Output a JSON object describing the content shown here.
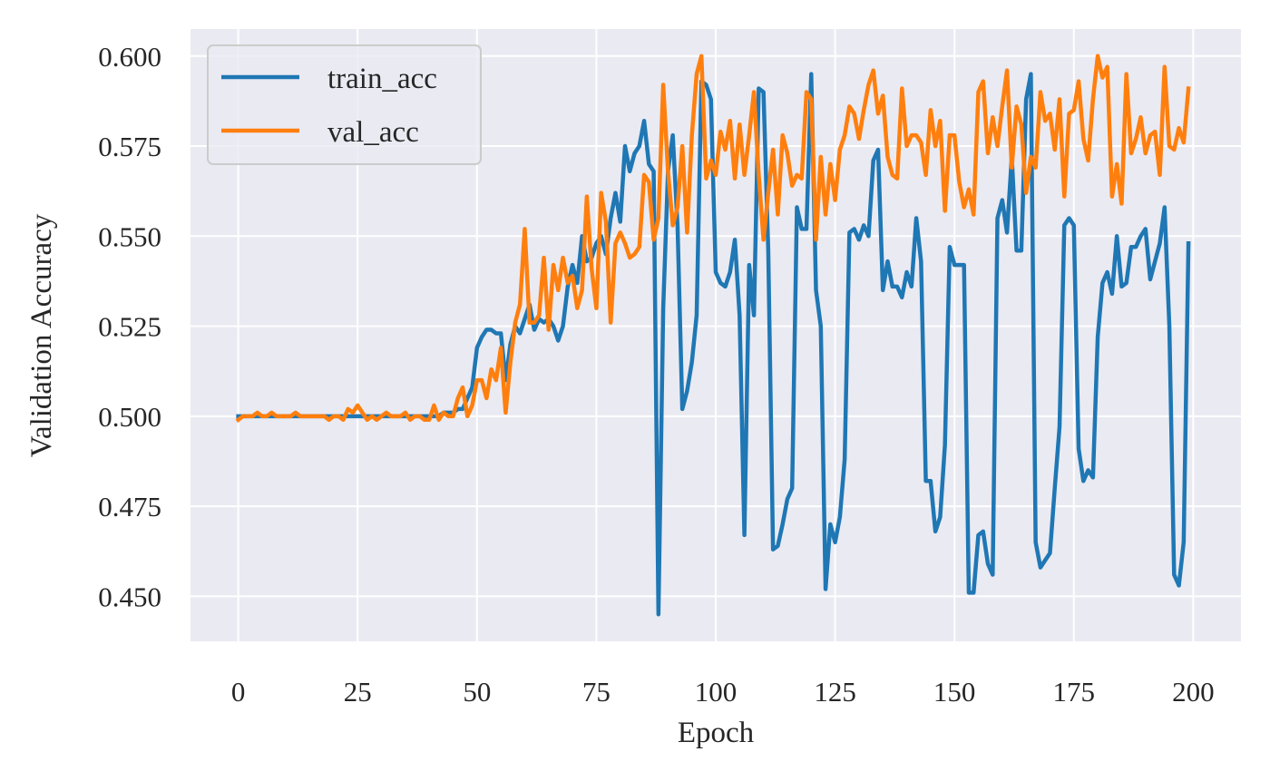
{
  "colors": {
    "background": "#eaeaf2",
    "grid": "#ffffff",
    "train": "#1f77b4",
    "val": "#ff7f0e"
  },
  "chart_data": {
    "type": "line",
    "xlabel": "Epoch",
    "ylabel": "Validation Accuracy",
    "xlim": [
      -10,
      210
    ],
    "ylim": [
      0.4375,
      0.6075
    ],
    "xticks": [
      0,
      25,
      50,
      75,
      100,
      125,
      150,
      175,
      200
    ],
    "xtick_labels": [
      "0",
      "25",
      "50",
      "75",
      "100",
      "125",
      "150",
      "175",
      "200"
    ],
    "yticks": [
      0.45,
      0.475,
      0.5,
      0.525,
      0.55,
      0.575,
      0.6
    ],
    "ytick_labels": [
      "0.450",
      "0.475",
      "0.500",
      "0.525",
      "0.550",
      "0.575",
      "0.600"
    ],
    "grid": true,
    "legend_position": "top-left",
    "series": [
      {
        "name": "train_acc",
        "x_start": 0,
        "values": [
          0.5,
          0.5,
          0.5,
          0.5,
          0.5,
          0.5,
          0.5,
          0.5,
          0.5,
          0.5,
          0.5,
          0.5,
          0.5,
          0.5,
          0.5,
          0.5,
          0.5,
          0.5,
          0.5,
          0.5,
          0.5,
          0.5,
          0.5,
          0.5,
          0.5,
          0.5,
          0.5,
          0.5,
          0.5,
          0.5,
          0.5,
          0.5,
          0.5,
          0.5,
          0.5,
          0.5,
          0.5,
          0.5,
          0.5,
          0.5,
          0.5,
          0.5,
          0.5,
          0.501,
          0.501,
          0.501,
          0.502,
          0.502,
          0.505,
          0.508,
          0.519,
          0.522,
          0.524,
          0.524,
          0.523,
          0.523,
          0.51,
          0.52,
          0.525,
          0.523,
          0.527,
          0.531,
          0.524,
          0.527,
          0.526,
          0.527,
          0.525,
          0.521,
          0.525,
          0.536,
          0.542,
          0.537,
          0.55,
          0.543,
          0.544,
          0.548,
          0.55,
          0.545,
          0.555,
          0.562,
          0.554,
          0.575,
          0.568,
          0.573,
          0.575,
          0.582,
          0.57,
          0.568,
          0.445,
          0.53,
          0.568,
          0.578,
          0.553,
          0.502,
          0.507,
          0.515,
          0.528,
          0.593,
          0.592,
          0.588,
          0.54,
          0.537,
          0.536,
          0.54,
          0.549,
          0.528,
          0.467,
          0.542,
          0.528,
          0.591,
          0.59,
          0.546,
          0.463,
          0.464,
          0.47,
          0.477,
          0.48,
          0.558,
          0.552,
          0.552,
          0.595,
          0.535,
          0.525,
          0.452,
          0.47,
          0.465,
          0.472,
          0.488,
          0.551,
          0.552,
          0.549,
          0.553,
          0.55,
          0.571,
          0.574,
          0.535,
          0.543,
          0.536,
          0.536,
          0.533,
          0.54,
          0.536,
          0.555,
          0.543,
          0.482,
          0.482,
          0.468,
          0.472,
          0.492,
          0.547,
          0.542,
          0.542,
          0.542,
          0.451,
          0.451,
          0.467,
          0.468,
          0.459,
          0.456,
          0.555,
          0.56,
          0.551,
          0.572,
          0.546,
          0.546,
          0.588,
          0.595,
          0.465,
          0.458,
          0.46,
          0.462,
          0.48,
          0.497,
          0.553,
          0.555,
          0.553,
          0.491,
          0.482,
          0.485,
          0.483,
          0.522,
          0.537,
          0.54,
          0.534,
          0.55,
          0.536,
          0.537,
          0.547,
          0.547,
          0.55,
          0.552,
          0.538,
          0.543,
          0.548,
          0.558,
          0.525,
          0.456,
          0.453,
          0.465,
          0.548
        ]
      },
      {
        "name": "val_acc",
        "x_start": 0,
        "values": [
          0.499,
          0.5,
          0.5,
          0.5,
          0.501,
          0.5,
          0.5,
          0.501,
          0.5,
          0.5,
          0.5,
          0.5,
          0.501,
          0.5,
          0.5,
          0.5,
          0.5,
          0.5,
          0.5,
          0.499,
          0.5,
          0.5,
          0.499,
          0.502,
          0.501,
          0.503,
          0.501,
          0.499,
          0.5,
          0.499,
          0.5,
          0.501,
          0.5,
          0.5,
          0.5,
          0.501,
          0.499,
          0.5,
          0.5,
          0.499,
          0.499,
          0.503,
          0.499,
          0.501,
          0.5,
          0.5,
          0.505,
          0.508,
          0.5,
          0.503,
          0.51,
          0.51,
          0.505,
          0.513,
          0.51,
          0.519,
          0.501,
          0.515,
          0.526,
          0.531,
          0.552,
          0.526,
          0.526,
          0.528,
          0.544,
          0.524,
          0.542,
          0.535,
          0.544,
          0.537,
          0.539,
          0.53,
          0.535,
          0.561,
          0.541,
          0.53,
          0.562,
          0.554,
          0.526,
          0.548,
          0.551,
          0.548,
          0.544,
          0.545,
          0.547,
          0.567,
          0.565,
          0.549,
          0.555,
          0.592,
          0.568,
          0.553,
          0.558,
          0.575,
          0.551,
          0.578,
          0.595,
          0.6,
          0.566,
          0.571,
          0.567,
          0.579,
          0.574,
          0.582,
          0.566,
          0.581,
          0.567,
          0.578,
          0.59,
          0.567,
          0.549,
          0.562,
          0.574,
          0.556,
          0.578,
          0.573,
          0.564,
          0.567,
          0.566,
          0.59,
          0.588,
          0.549,
          0.572,
          0.556,
          0.57,
          0.56,
          0.574,
          0.578,
          0.586,
          0.584,
          0.577,
          0.585,
          0.592,
          0.596,
          0.584,
          0.589,
          0.572,
          0.567,
          0.566,
          0.591,
          0.575,
          0.578,
          0.578,
          0.576,
          0.567,
          0.585,
          0.575,
          0.582,
          0.557,
          0.578,
          0.578,
          0.565,
          0.558,
          0.563,
          0.556,
          0.59,
          0.593,
          0.573,
          0.583,
          0.575,
          0.586,
          0.596,
          0.569,
          0.586,
          0.581,
          0.562,
          0.572,
          0.569,
          0.59,
          0.582,
          0.584,
          0.574,
          0.588,
          0.561,
          0.584,
          0.585,
          0.593,
          0.577,
          0.571,
          0.588,
          0.6,
          0.594,
          0.597,
          0.561,
          0.57,
          0.559,
          0.595,
          0.573,
          0.577,
          0.583,
          0.573,
          0.578,
          0.579,
          0.567,
          0.597,
          0.575,
          0.574,
          0.58,
          0.576,
          0.591
        ]
      }
    ]
  }
}
